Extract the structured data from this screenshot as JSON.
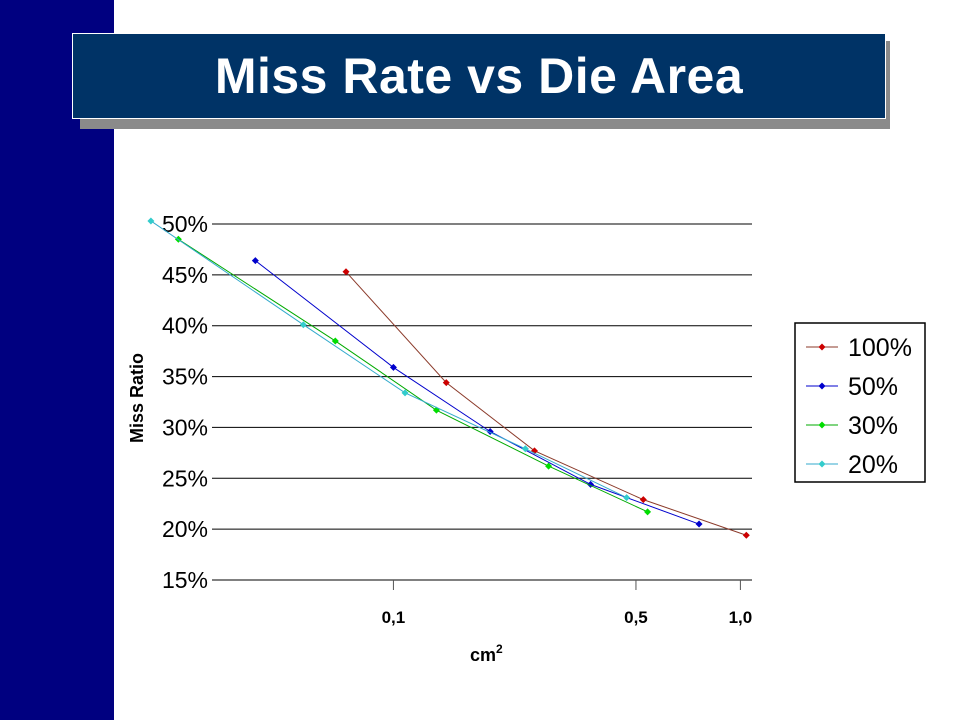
{
  "slide": {
    "title": "Miss Rate vs Die Area"
  },
  "colors": {
    "left_bar": "#000080",
    "title_bg": "#003366"
  },
  "chart_data": {
    "type": "line",
    "xscale": "log",
    "xlim": [
      0.03,
      1.08
    ],
    "ylim": [
      15,
      50
    ],
    "grid": "horizontal",
    "legend_placement": "right",
    "xlabel": "cm",
    "xlabel_superscript": "2",
    "ylabel": "Miss Ratio",
    "yticks": [
      {
        "value": 15,
        "label": "15%"
      },
      {
        "value": 20,
        "label": "20%"
      },
      {
        "value": 25,
        "label": "25%"
      },
      {
        "value": 30,
        "label": "30%"
      },
      {
        "value": 35,
        "label": "35%"
      },
      {
        "value": 40,
        "label": "40%"
      },
      {
        "value": 45,
        "label": "45%"
      },
      {
        "value": 50,
        "label": "50%"
      }
    ],
    "xticks": [
      {
        "value": 0.1,
        "label": "0,1"
      },
      {
        "value": 0.5,
        "label": "0,5"
      },
      {
        "value": 1.0,
        "label": "1,0"
      }
    ],
    "series": [
      {
        "name": "100%",
        "color": "#cc0000",
        "line_color": "#8b3a2a",
        "x": [
          0.073,
          0.142,
          0.255,
          0.525,
          1.04
        ],
        "y": [
          45.3,
          34.4,
          27.7,
          22.9,
          19.4
        ]
      },
      {
        "name": "50%",
        "color": "#0000cc",
        "line_color": "#0000cc",
        "x": [
          0.04,
          0.1,
          0.19,
          0.37,
          0.76
        ],
        "y": [
          46.4,
          35.9,
          29.6,
          24.4,
          20.5
        ]
      },
      {
        "name": "30%",
        "color": "#00dd00",
        "line_color": "#00aa00",
        "x": [
          0.024,
          0.068,
          0.133,
          0.28,
          0.54
        ],
        "y": [
          48.5,
          38.5,
          31.7,
          26.2,
          21.7
        ]
      },
      {
        "name": "20%",
        "color": "#33cccc",
        "line_color": "#33aacc",
        "x": [
          0.02,
          0.055,
          0.108,
          0.24,
          0.47
        ],
        "y": [
          50.3,
          40.1,
          33.4,
          27.9,
          23.1
        ]
      }
    ]
  }
}
